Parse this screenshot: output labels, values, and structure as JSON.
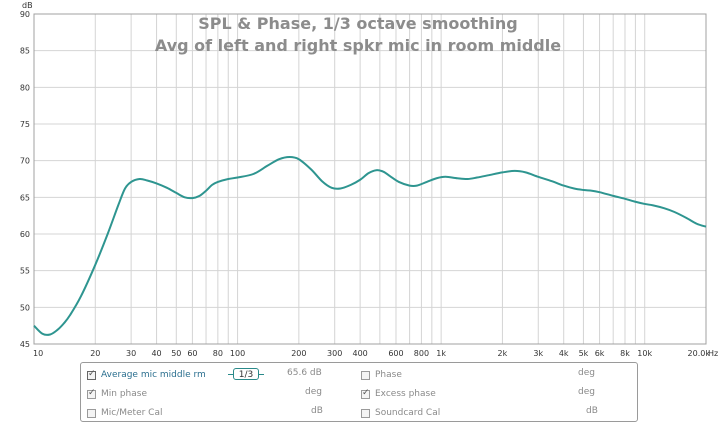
{
  "chart_data": {
    "type": "line",
    "title": "SPL & Phase, 1/3 octave smoothing",
    "subtitle": "Avg of left and right spkr mic in room middle",
    "ylabel": "dB",
    "xlabel": "Hz",
    "x_scale": "log",
    "xlim": [
      10,
      20000
    ],
    "ylim": [
      45,
      90
    ],
    "grid": true,
    "y_ticks": [
      45,
      50,
      55,
      60,
      65,
      70,
      75,
      80,
      85,
      90
    ],
    "x_ticks": [
      {
        "v": 10,
        "label": "10"
      },
      {
        "v": 20,
        "label": "20"
      },
      {
        "v": 30,
        "label": "30"
      },
      {
        "v": 40,
        "label": "40"
      },
      {
        "v": 50,
        "label": "50"
      },
      {
        "v": 60,
        "label": "60"
      },
      {
        "v": 80,
        "label": "80"
      },
      {
        "v": 100,
        "label": "100"
      },
      {
        "v": 200,
        "label": "200"
      },
      {
        "v": 300,
        "label": "300"
      },
      {
        "v": 400,
        "label": "400"
      },
      {
        "v": 600,
        "label": "600"
      },
      {
        "v": 800,
        "label": "800"
      },
      {
        "v": 1000,
        "label": "1k"
      },
      {
        "v": 2000,
        "label": "2k"
      },
      {
        "v": 3000,
        "label": "3k"
      },
      {
        "v": 4000,
        "label": "4k"
      },
      {
        "v": 5000,
        "label": "5k"
      },
      {
        "v": 6000,
        "label": "6k"
      },
      {
        "v": 8000,
        "label": "8k"
      },
      {
        "v": 10000,
        "label": "10k"
      },
      {
        "v": 20000,
        "label": "20.0k"
      }
    ],
    "series": [
      {
        "name": "Average mic middle rm",
        "color": "#2e9590",
        "points": [
          [
            10,
            47.5
          ],
          [
            11,
            46.4
          ],
          [
            12,
            46.3
          ],
          [
            13,
            46.9
          ],
          [
            14,
            47.8
          ],
          [
            15,
            48.9
          ],
          [
            17,
            51.5
          ],
          [
            20,
            55.8
          ],
          [
            23,
            60.0
          ],
          [
            26,
            64.0
          ],
          [
            28,
            66.2
          ],
          [
            30,
            67.1
          ],
          [
            33,
            67.5
          ],
          [
            36,
            67.3
          ],
          [
            40,
            66.9
          ],
          [
            45,
            66.3
          ],
          [
            50,
            65.6
          ],
          [
            55,
            65.0
          ],
          [
            60,
            64.9
          ],
          [
            65,
            65.2
          ],
          [
            70,
            65.9
          ],
          [
            75,
            66.7
          ],
          [
            80,
            67.1
          ],
          [
            90,
            67.5
          ],
          [
            100,
            67.7
          ],
          [
            120,
            68.2
          ],
          [
            140,
            69.3
          ],
          [
            160,
            70.2
          ],
          [
            180,
            70.5
          ],
          [
            200,
            70.2
          ],
          [
            230,
            68.8
          ],
          [
            260,
            67.2
          ],
          [
            290,
            66.3
          ],
          [
            320,
            66.2
          ],
          [
            360,
            66.7
          ],
          [
            400,
            67.4
          ],
          [
            440,
            68.3
          ],
          [
            480,
            68.7
          ],
          [
            520,
            68.5
          ],
          [
            560,
            67.9
          ],
          [
            620,
            67.1
          ],
          [
            700,
            66.6
          ],
          [
            760,
            66.6
          ],
          [
            850,
            67.1
          ],
          [
            950,
            67.6
          ],
          [
            1050,
            67.8
          ],
          [
            1200,
            67.6
          ],
          [
            1350,
            67.5
          ],
          [
            1500,
            67.7
          ],
          [
            1700,
            68.0
          ],
          [
            2000,
            68.4
          ],
          [
            2300,
            68.6
          ],
          [
            2600,
            68.4
          ],
          [
            3000,
            67.8
          ],
          [
            3500,
            67.2
          ],
          [
            4000,
            66.6
          ],
          [
            4500,
            66.2
          ],
          [
            5000,
            66.0
          ],
          [
            5500,
            65.9
          ],
          [
            6000,
            65.7
          ],
          [
            7000,
            65.2
          ],
          [
            8000,
            64.8
          ],
          [
            9000,
            64.4
          ],
          [
            10000,
            64.1
          ],
          [
            11000,
            63.9
          ],
          [
            12500,
            63.5
          ],
          [
            14000,
            63.0
          ],
          [
            16000,
            62.2
          ],
          [
            18000,
            61.4
          ],
          [
            20000,
            61.0
          ]
        ]
      }
    ]
  },
  "legend": {
    "rows": [
      [
        {
          "label": "Average mic middle rm",
          "checked": true,
          "active": true,
          "smoothing": "1/3",
          "value": "65.6 dB"
        },
        {
          "label": "Phase",
          "checked": false,
          "active": false,
          "unit": "deg"
        }
      ],
      [
        {
          "label": "Min phase",
          "checked": true,
          "active": false,
          "unit": "deg"
        },
        {
          "label": "Excess phase",
          "checked": true,
          "active": false,
          "unit": "deg"
        }
      ],
      [
        {
          "label": "Mic/Meter Cal",
          "checked": false,
          "active": false,
          "unit": "dB"
        },
        {
          "label": "Soundcard Cal",
          "checked": false,
          "active": false,
          "unit": "dB"
        }
      ]
    ]
  }
}
